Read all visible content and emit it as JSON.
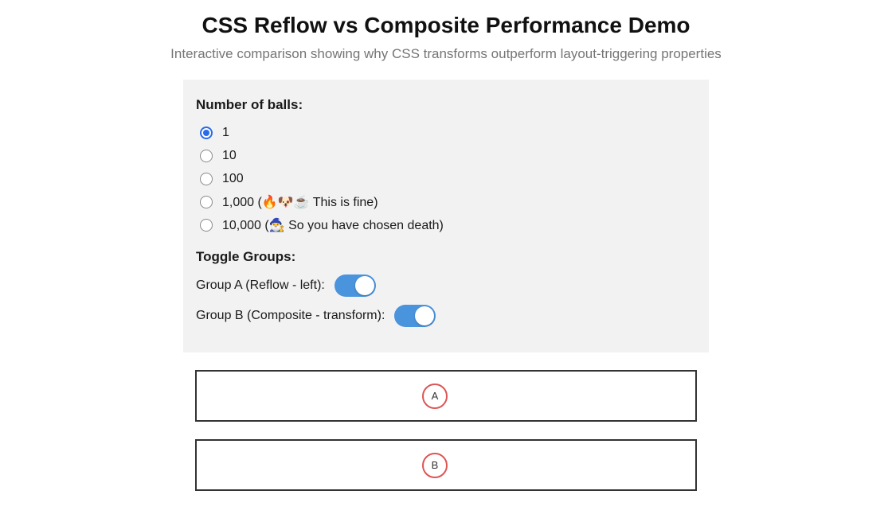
{
  "page": {
    "title": "CSS Reflow vs Composite Performance Demo",
    "subtitle": "Interactive comparison showing why CSS transforms outperform layout-triggering properties"
  },
  "controls": {
    "ball_count": {
      "label": "Number of balls:",
      "options": [
        {
          "label": "1",
          "selected": true
        },
        {
          "label": "10",
          "selected": false
        },
        {
          "label": "100",
          "selected": false
        },
        {
          "label": "1,000 (🔥🐶☕ This is fine)",
          "selected": false
        },
        {
          "label": "10,000 (🧙‍♂️ So you have chosen death)",
          "selected": false
        }
      ]
    },
    "toggle_groups": {
      "label": "Toggle Groups:",
      "items": [
        {
          "label": "Group A (Reflow - left):",
          "on": true
        },
        {
          "label": "Group B (Composite - transform):",
          "on": true
        }
      ]
    }
  },
  "tracks": [
    {
      "ball_label": "A"
    },
    {
      "ball_label": "B"
    }
  ],
  "colors": {
    "toggle_on_blue": "#4a93dd",
    "radio_checked_blue": "#2b6be8",
    "ball_border_red": "#dd5555",
    "panel_background": "#f2f2f2",
    "track_border": "#333333",
    "subtitle_gray": "#757575"
  }
}
